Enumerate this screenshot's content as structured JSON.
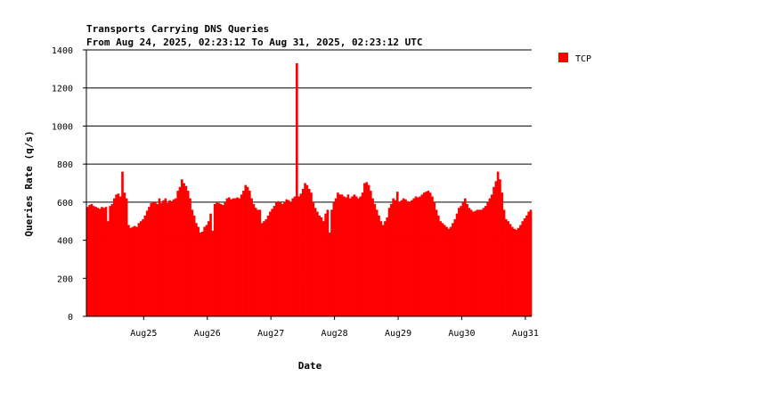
{
  "chart_data": {
    "type": "bar",
    "title": "Transports Carrying DNS Queries",
    "subtitle": "From Aug 24, 2025, 02:23:12 To Aug 31, 2025, 02:23:12 UTC",
    "xlabel": "Date",
    "ylabel": "Queries Rate (q/s)",
    "ylim": [
      0,
      1400
    ],
    "yticks": [
      0,
      200,
      400,
      600,
      800,
      1000,
      1200,
      1400
    ],
    "xlim": [
      "2025-08-24T02:23:12",
      "2025-08-31T02:23:12"
    ],
    "xticks": [
      {
        "label": "Aug25",
        "date": "2025-08-25"
      },
      {
        "label": "Aug26",
        "date": "2025-08-26"
      },
      {
        "label": "Aug27",
        "date": "2025-08-27"
      },
      {
        "label": "Aug28",
        "date": "2025-08-28"
      },
      {
        "label": "Aug29",
        "date": "2025-08-29"
      },
      {
        "label": "Aug30",
        "date": "2025-08-30"
      },
      {
        "label": "Aug31",
        "date": "2025-08-31"
      }
    ],
    "grid": "horizontal",
    "legend_position": "top-right",
    "series": [
      {
        "name": "TCP",
        "color": "#ff0000",
        "values": [
          575,
          585,
          590,
          580,
          575,
          570,
          565,
          575,
          570,
          575,
          500,
          580,
          590,
          620,
          640,
          645,
          630,
          760,
          650,
          620,
          480,
          465,
          470,
          475,
          470,
          490,
          500,
          510,
          530,
          555,
          575,
          595,
          600,
          600,
          590,
          620,
          595,
          610,
          620,
          595,
          610,
          605,
          615,
          620,
          660,
          680,
          720,
          700,
          685,
          660,
          620,
          560,
          530,
          490,
          470,
          440,
          445,
          470,
          480,
          500,
          540,
          450,
          590,
          600,
          595,
          590,
          585,
          600,
          620,
          625,
          615,
          620,
          620,
          625,
          620,
          640,
          660,
          690,
          680,
          660,
          620,
          590,
          570,
          560,
          560,
          490,
          500,
          510,
          530,
          550,
          565,
          580,
          600,
          605,
          600,
          590,
          600,
          615,
          610,
          600,
          620,
          630,
          1330,
          630,
          645,
          670,
          700,
          690,
          670,
          650,
          600,
          570,
          550,
          530,
          520,
          500,
          540,
          560,
          440,
          560,
          600,
          620,
          650,
          640,
          640,
          630,
          625,
          640,
          620,
          630,
          640,
          630,
          620,
          630,
          650,
          700,
          705,
          690,
          660,
          620,
          590,
          560,
          530,
          500,
          480,
          500,
          520,
          570,
          590,
          620,
          610,
          655,
          600,
          610,
          620,
          615,
          605,
          600,
          610,
          620,
          630,
          625,
          630,
          640,
          650,
          655,
          660,
          650,
          630,
          600,
          560,
          530,
          500,
          490,
          480,
          470,
          460,
          470,
          490,
          510,
          540,
          570,
          580,
          600,
          620,
          590,
          570,
          560,
          550,
          555,
          560,
          560,
          560,
          570,
          580,
          600,
          620,
          640,
          680,
          710,
          760,
          720,
          650,
          560,
          510,
          500,
          485,
          470,
          460,
          455,
          465,
          480,
          500,
          515,
          530,
          550,
          560
        ]
      }
    ]
  }
}
